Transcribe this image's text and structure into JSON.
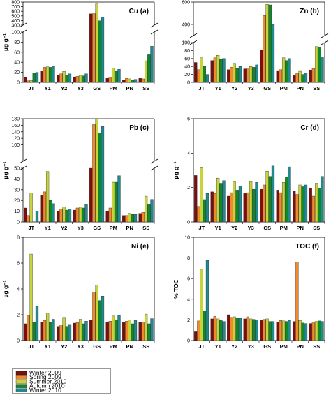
{
  "colors": [
    "#7b0f0f",
    "#f08a2a",
    "#c8d23a",
    "#0e8a2a",
    "#1f8a8f"
  ],
  "legend": [
    "Winter 2009",
    "Spring 2009",
    "Summer 2010",
    "Autumn 2010",
    "Winter  2010"
  ],
  "categories": [
    "JT",
    "Y1",
    "Y2",
    "Y3",
    "GS",
    "PM",
    "PN",
    "SS"
  ],
  "chart_data": [
    {
      "type": "bar",
      "title": "Cu (a)",
      "ylabel": "µg g⁻¹",
      "lower_ylim": [
        0,
        100
      ],
      "lower_ticks": [
        0,
        20,
        40,
        60,
        80,
        100
      ],
      "upper_ylim": [
        300,
        800
      ],
      "upper_ticks": [
        300,
        400,
        500,
        600,
        700,
        800
      ],
      "series": [
        {
          "name": "Winter 2009",
          "values": [
            10,
            22,
            14,
            11,
            545,
            8,
            5,
            8
          ]
        },
        {
          "name": "Spring 2009",
          "values": [
            3,
            30,
            17,
            12,
            550,
            10,
            8,
            7
          ]
        },
        {
          "name": "Summer 2010",
          "values": [
            4,
            31,
            22,
            14,
            760,
            28,
            7,
            43
          ]
        },
        {
          "name": "Autumn 2010",
          "values": [
            18,
            30,
            14,
            13,
            395,
            22,
            5,
            55
          ]
        },
        {
          "name": "Winter  2010",
          "values": [
            20,
            32,
            17,
            17,
            470,
            26,
            6,
            72
          ]
        }
      ]
    },
    {
      "type": "bar",
      "title": "Zn (b)",
      "ylabel": "",
      "lower_ylim": [
        0,
        100
      ],
      "lower_ticks": [
        0,
        20,
        40,
        60,
        80,
        100
      ],
      "upper_ylim": [
        300,
        600
      ],
      "upper_ticks": [
        400,
        600
      ],
      "series": [
        {
          "name": "Winter 2009",
          "values": [
            50,
            55,
            32,
            34,
            170,
            28,
            18,
            30
          ]
        },
        {
          "name": "Spring 2009",
          "values": [
            32,
            62,
            38,
            36,
            480,
            32,
            22,
            35
          ]
        },
        {
          "name": "Summer 2010",
          "values": [
            62,
            68,
            48,
            40,
            580,
            62,
            28,
            90
          ]
        },
        {
          "name": "Autumn 2010",
          "values": [
            40,
            58,
            35,
            38,
            575,
            55,
            20,
            88
          ]
        },
        {
          "name": "Winter  2010",
          "values": [
            20,
            60,
            40,
            44,
            400,
            60,
            24,
            108
          ]
        }
      ]
    },
    {
      "type": "bar",
      "title": "Pb (c)",
      "ylabel": "µg g⁻¹",
      "lower_ylim": [
        0,
        50
      ],
      "lower_ticks": [
        0,
        10,
        20,
        30,
        40,
        50
      ],
      "upper_ylim": [
        50,
        180
      ],
      "upper_ticks": [
        100,
        120,
        140,
        160,
        180
      ],
      "series": [
        {
          "name": "Winter 2009",
          "values": [
            13,
            25,
            10,
            11,
            50,
            10,
            6,
            8
          ]
        },
        {
          "name": "Spring 2009",
          "values": [
            6,
            28,
            12,
            13,
            162,
            13,
            6,
            9
          ]
        },
        {
          "name": "Summer 2010",
          "values": [
            27,
            47,
            14,
            14,
            180,
            37,
            8,
            24
          ]
        },
        {
          "name": "Autumn 2010",
          "values": [
            0,
            20,
            11,
            13,
            137,
            37,
            7,
            16
          ]
        },
        {
          "name": "Winter  2010",
          "values": [
            10,
            17,
            12,
            16,
            156,
            43,
            7,
            21
          ]
        }
      ]
    },
    {
      "type": "bar",
      "title": "Cr (d)",
      "ylabel": "µg g⁻¹",
      "ylim": [
        0,
        6
      ],
      "ticks": [
        0,
        2,
        4,
        6
      ],
      "series": [
        {
          "name": "Winter 2009",
          "values": [
            2.7,
            1.75,
            1.5,
            1.65,
            1.9,
            1.85,
            1.8,
            1.95
          ]
        },
        {
          "name": "Spring 2009",
          "values": [
            0.9,
            1.65,
            1.7,
            1.7,
            2.15,
            1.7,
            1.6,
            1.5
          ]
        },
        {
          "name": "Summer 2010",
          "values": [
            3.15,
            2.55,
            2.35,
            2.35,
            2.95,
            2.3,
            2.15,
            2.25
          ]
        },
        {
          "name": "Autumn 2010",
          "values": [
            1.3,
            2.25,
            1.85,
            1.9,
            2.65,
            2.6,
            2.05,
            1.95
          ]
        },
        {
          "name": "Winter  2010",
          "values": [
            1.65,
            2.4,
            2.1,
            2.3,
            3.25,
            3.2,
            2.15,
            2.65
          ]
        }
      ]
    },
    {
      "type": "bar",
      "title": "Ni (e)",
      "ylabel": "µg g⁻¹",
      "ylim": [
        0,
        8
      ],
      "ticks": [
        0,
        2,
        4,
        6,
        8
      ],
      "series": [
        {
          "name": "Winter 2009",
          "values": [
            1.3,
            1.4,
            1.1,
            1.35,
            1.6,
            1.4,
            1.4,
            1.4
          ]
        },
        {
          "name": "Spring 2009",
          "values": [
            1.95,
            1.55,
            1.2,
            1.4,
            3.75,
            1.5,
            1.5,
            1.45
          ]
        },
        {
          "name": "Summer 2010",
          "values": [
            6.7,
            2.15,
            1.8,
            1.65,
            4.3,
            1.9,
            1.6,
            2.05
          ]
        },
        {
          "name": "Autumn 2010",
          "values": [
            1.4,
            1.4,
            1.1,
            1.3,
            3.1,
            1.6,
            1.3,
            1.3
          ]
        },
        {
          "name": "Winter  2010",
          "values": [
            2.65,
            1.65,
            1.25,
            1.5,
            3.45,
            1.95,
            1.55,
            1.7
          ]
        }
      ]
    },
    {
      "type": "bar",
      "title": "TOC (f)",
      "ylabel": "% TOC",
      "ylim": [
        0,
        10
      ],
      "ticks": [
        0,
        2,
        4,
        6,
        8,
        10
      ],
      "series": [
        {
          "name": "Winter 2009",
          "values": [
            0.85,
            2.1,
            2.5,
            2.1,
            1.95,
            1.75,
            1.85,
            1.65
          ]
        },
        {
          "name": "Spring 2009",
          "values": [
            1.9,
            2.35,
            2.25,
            2.3,
            2.05,
            1.95,
            7.6,
            1.8
          ]
        },
        {
          "name": "Summer 2010",
          "values": [
            6.9,
            2.1,
            2.3,
            2.1,
            2.1,
            1.9,
            1.95,
            1.85
          ]
        },
        {
          "name": "Autumn 2010",
          "values": [
            2.85,
            2.0,
            2.2,
            2.05,
            1.85,
            1.85,
            1.7,
            1.9
          ]
        },
        {
          "name": "Winter  2010",
          "values": [
            7.75,
            1.85,
            2.15,
            2.0,
            1.85,
            1.95,
            1.65,
            1.85
          ]
        }
      ]
    }
  ]
}
